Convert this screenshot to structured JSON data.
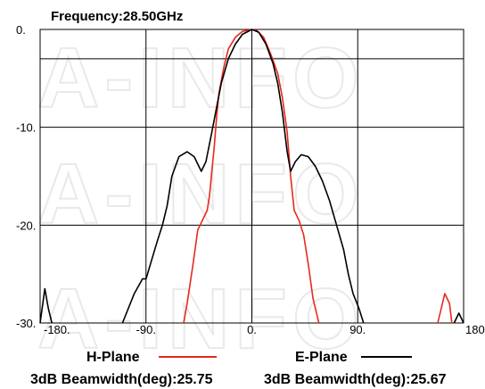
{
  "chart_data": {
    "type": "line",
    "title": "Frequency:28.50GHz",
    "xlim": [
      -180,
      180
    ],
    "ylim": [
      -30,
      0
    ],
    "x_ticks": [
      "-180.",
      "-90.",
      "0.",
      "90.",
      "180."
    ],
    "y_ticks": [
      "0.",
      "-10.",
      "-20.",
      "-30."
    ],
    "grid": true,
    "watermark": "A-INFO",
    "series": [
      {
        "name": "H-Plane",
        "color": "#e8281e",
        "beamwidth_label": "3dB Beamwidth(deg):25.75",
        "points": [
          [
            -58,
            -30
          ],
          [
            -55,
            -28
          ],
          [
            -50,
            -24
          ],
          [
            -46,
            -20.5
          ],
          [
            -42,
            -19.5
          ],
          [
            -38,
            -18.5
          ],
          [
            -36,
            -17
          ],
          [
            -34,
            -14.5
          ],
          [
            -32,
            -12
          ],
          [
            -30,
            -9
          ],
          [
            -28,
            -6.5
          ],
          [
            -24,
            -4
          ],
          [
            -20,
            -2
          ],
          [
            -14,
            -0.8
          ],
          [
            -8,
            -0.2
          ],
          [
            0,
            0
          ],
          [
            4,
            -0.1
          ],
          [
            10,
            -0.8
          ],
          [
            16,
            -2.5
          ],
          [
            22,
            -4.5
          ],
          [
            26,
            -7
          ],
          [
            30,
            -10.5
          ],
          [
            33,
            -15
          ],
          [
            36,
            -18.5
          ],
          [
            40,
            -19.5
          ],
          [
            44,
            -21
          ],
          [
            48,
            -24
          ],
          [
            52,
            -27.5
          ],
          [
            57,
            -30
          ]
        ],
        "points2": [
          [
            158,
            -30
          ],
          [
            164,
            -27
          ],
          [
            168,
            -28
          ],
          [
            170,
            -30
          ]
        ]
      },
      {
        "name": "E-Plane",
        "color": "#000000",
        "beamwidth_label": "3dB Beamwidth(deg):25.67",
        "points": [
          [
            -110,
            -30
          ],
          [
            -100,
            -27
          ],
          [
            -93,
            -25.5
          ],
          [
            -90,
            -25.5
          ],
          [
            -85,
            -23.5
          ],
          [
            -80,
            -21.5
          ],
          [
            -76,
            -20
          ],
          [
            -72,
            -18
          ],
          [
            -68,
            -15
          ],
          [
            -62,
            -13
          ],
          [
            -55,
            -12.5
          ],
          [
            -49,
            -13
          ],
          [
            -43,
            -14.5
          ],
          [
            -39,
            -13.5
          ],
          [
            -34,
            -10.5
          ],
          [
            -30,
            -8
          ],
          [
            -26,
            -5.5
          ],
          [
            -20,
            -3
          ],
          [
            -14,
            -1.5
          ],
          [
            -8,
            -0.5
          ],
          [
            0,
            0
          ],
          [
            6,
            -0.3
          ],
          [
            12,
            -1.5
          ],
          [
            18,
            -3.5
          ],
          [
            22,
            -5.5
          ],
          [
            26,
            -8.5
          ],
          [
            30,
            -12.5
          ],
          [
            33,
            -14.5
          ],
          [
            37,
            -13.5
          ],
          [
            42,
            -12.8
          ],
          [
            48,
            -13
          ],
          [
            54,
            -14
          ],
          [
            60,
            -15.5
          ],
          [
            66,
            -17.5
          ],
          [
            72,
            -20
          ],
          [
            78,
            -22.5
          ],
          [
            82,
            -25
          ],
          [
            86,
            -27
          ],
          [
            91,
            -28.5
          ],
          [
            95,
            -30
          ]
        ],
        "points2": [
          [
            -180,
            -30
          ],
          [
            -176,
            -26.5
          ],
          [
            -173,
            -28.5
          ],
          [
            -170,
            -30
          ]
        ],
        "points3": [
          [
            172,
            -30
          ],
          [
            176,
            -29
          ],
          [
            180,
            -30
          ]
        ]
      }
    ]
  }
}
